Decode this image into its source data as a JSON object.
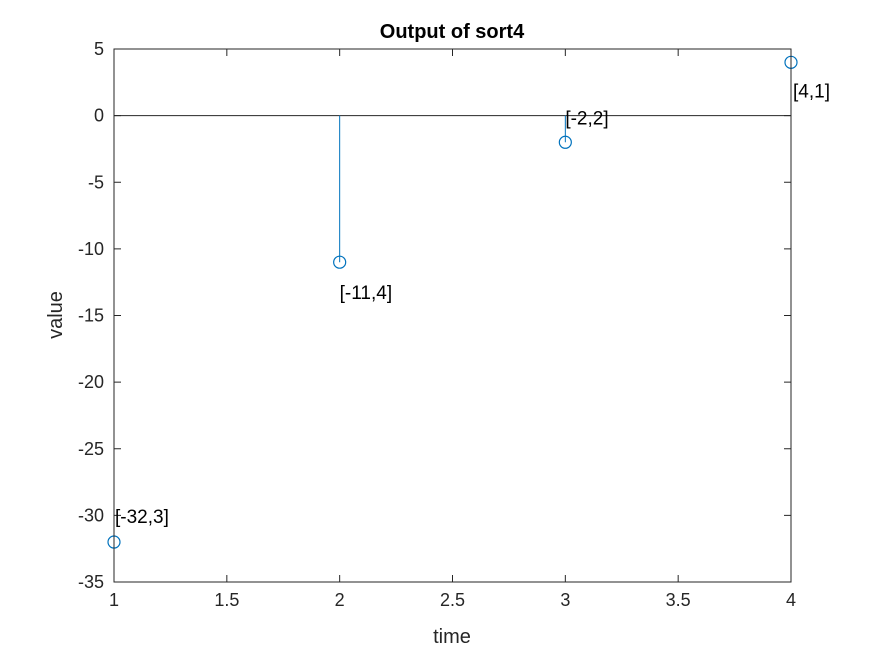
{
  "chart_data": {
    "type": "stem",
    "title": "Output of sort4",
    "xlabel": "time",
    "ylabel": "value",
    "xlim": [
      1,
      4
    ],
    "ylim": [
      -35,
      5
    ],
    "xticks": [
      1,
      1.5,
      2,
      2.5,
      3,
      3.5,
      4
    ],
    "yticks": [
      5,
      0,
      -5,
      -10,
      -15,
      -20,
      -25,
      -30,
      -35
    ],
    "x": [
      1,
      2,
      3,
      4
    ],
    "y": [
      -32,
      -11,
      -2,
      4
    ],
    "point_labels": [
      "[-32,3]",
      "[-11,4]",
      "[-2,2]",
      "[4,1]"
    ],
    "series_color": "#0072BD",
    "baseline": 0,
    "grid": false,
    "legend": "none"
  }
}
